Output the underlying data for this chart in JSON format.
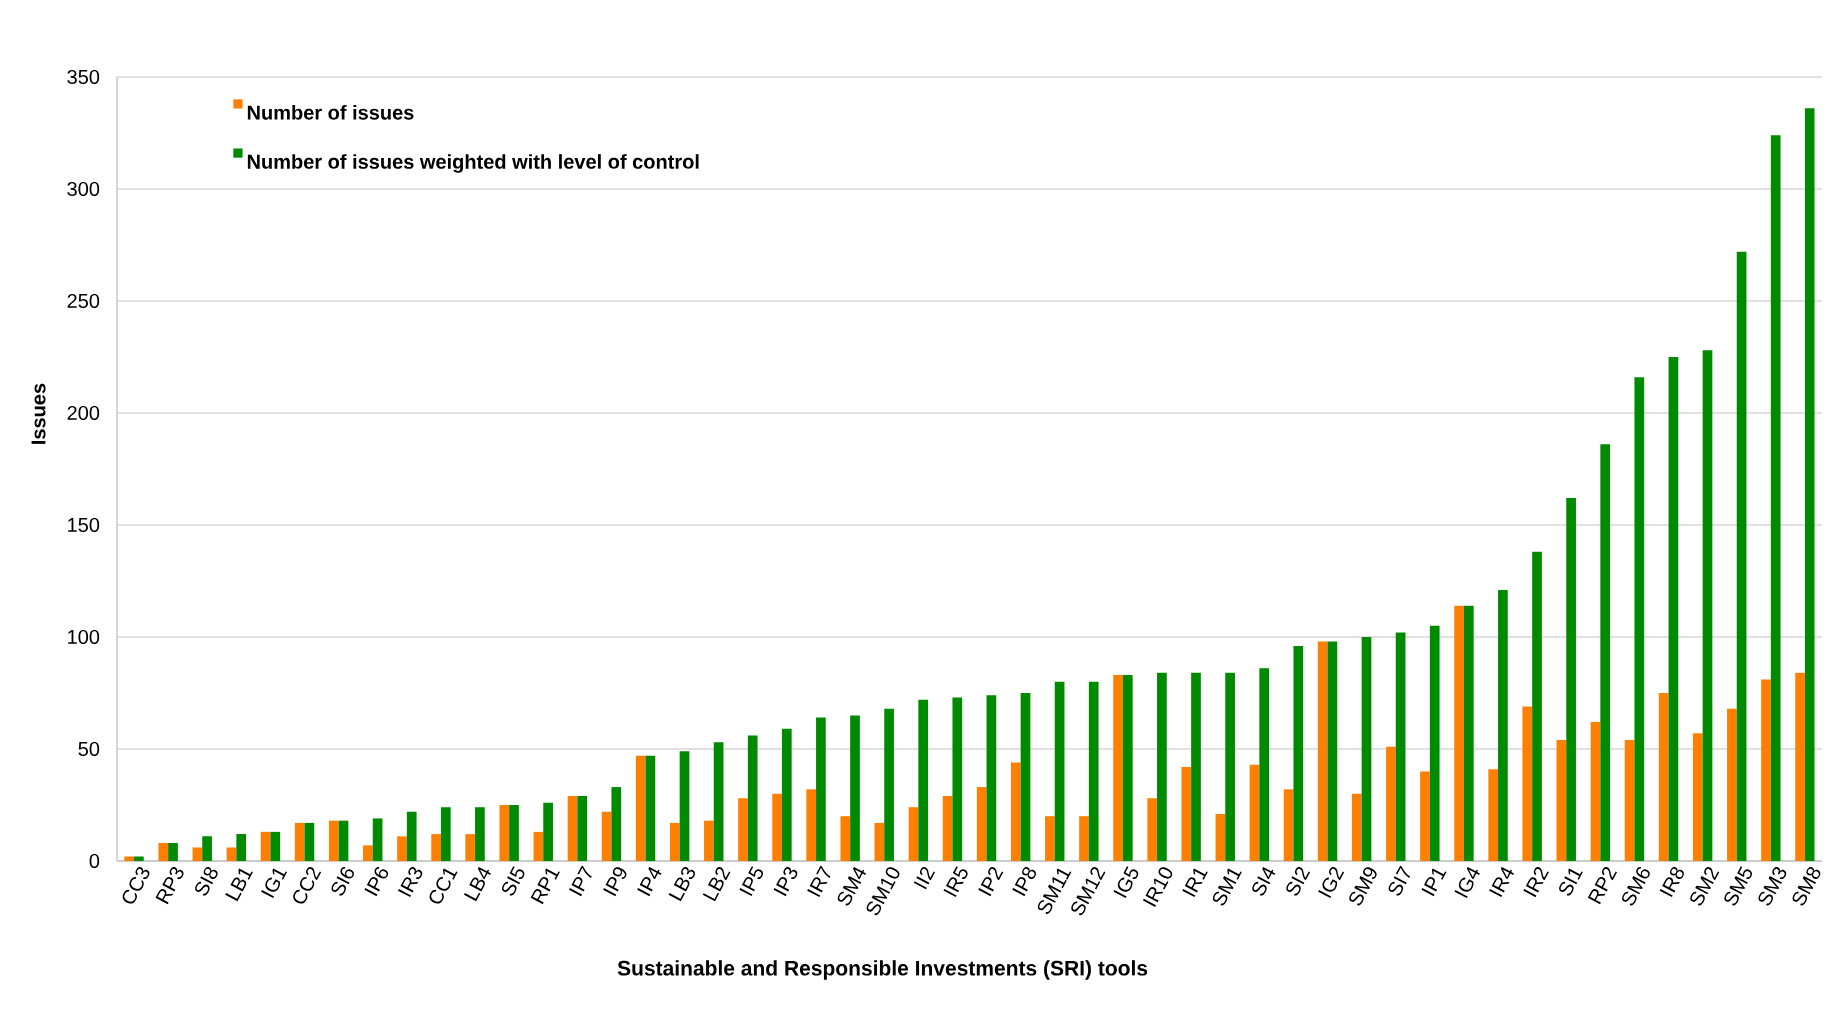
{
  "chart_data": {
    "type": "bar",
    "xlabel": "Sustainable and Responsible Investments (SRI) tools",
    "ylabel": "Issues",
    "categories": [
      "CC3",
      "RP3",
      "SI8",
      "LB1",
      "IG1",
      "CC2",
      "SI6",
      "IP6",
      "IR3",
      "CC1",
      "LB4",
      "SI5",
      "RP1",
      "IP7",
      "IP9",
      "IP4",
      "LB3",
      "LB2",
      "IP5",
      "IP3",
      "IR7",
      "SM4",
      "SM10",
      "II2",
      "IR5",
      "IP2",
      "IP8",
      "SM11",
      "SM12",
      "IG5",
      "IR10",
      "IR1",
      "SM1",
      "SI4",
      "SI2",
      "IG2",
      "SM9",
      "SI7",
      "IP1",
      "IG4",
      "IR4",
      "IR2",
      "SI1",
      "RP2",
      "SM6",
      "IR8",
      "SM2",
      "SM5",
      "SM3",
      "SM8"
    ],
    "series": [
      {
        "name": "Number of issues",
        "color": "#ff7f00",
        "values": [
          2,
          8,
          6,
          6,
          13,
          17,
          18,
          7,
          11,
          12,
          12,
          25,
          13,
          29,
          22,
          47,
          17,
          18,
          28,
          30,
          32,
          20,
          17,
          24,
          29,
          33,
          44,
          20,
          20,
          83,
          28,
          42,
          21,
          43,
          32,
          98,
          30,
          51,
          40,
          114,
          41,
          69,
          54,
          62,
          54,
          75,
          57,
          68,
          81,
          84
        ]
      },
      {
        "name": "Number of issues weighted with level of control",
        "color": "#008a00",
        "values": [
          2,
          8,
          11,
          12,
          13,
          17,
          18,
          19,
          22,
          24,
          24,
          25,
          26,
          29,
          33,
          47,
          49,
          53,
          56,
          59,
          64,
          65,
          68,
          72,
          73,
          74,
          75,
          80,
          80,
          83,
          84,
          84,
          84,
          86,
          96,
          98,
          100,
          102,
          105,
          114,
          121,
          138,
          162,
          186,
          216,
          225,
          228,
          272,
          324,
          336
        ]
      }
    ],
    "ylim": [
      0,
      350
    ],
    "yticks": [
      0,
      50,
      100,
      150,
      200,
      250,
      300,
      350
    ],
    "grid": "y",
    "legend": "top left"
  }
}
